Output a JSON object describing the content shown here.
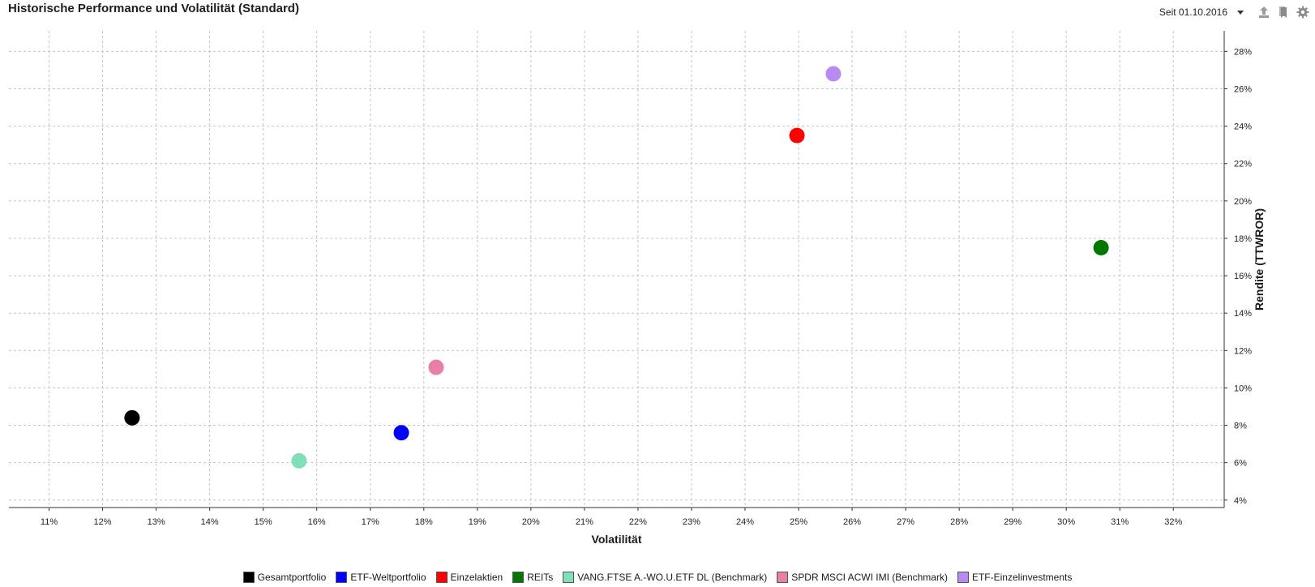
{
  "header": {
    "title": "Historische Performance und Volatilität (Standard)",
    "period_label": "Seit 01.10.2016",
    "icons": [
      "dropdown-arrow-icon",
      "export-icon",
      "bookmark-icon",
      "gear-icon"
    ]
  },
  "chart_data": {
    "type": "scatter",
    "title": "Historische Performance und Volatilität (Standard)",
    "xlabel": "Volatilität",
    "ylabel": "Rendite (TTWROR)",
    "xlim": [
      10.25,
      32.95
    ],
    "ylim": [
      3.6,
      29.1
    ],
    "x_ticks": [
      11,
      12,
      13,
      14,
      15,
      16,
      17,
      18,
      19,
      20,
      21,
      22,
      23,
      24,
      25,
      26,
      27,
      28,
      29,
      30,
      31,
      32
    ],
    "y_ticks": [
      4,
      6,
      8,
      10,
      12,
      14,
      16,
      18,
      20,
      22,
      24,
      26,
      28
    ],
    "tick_suffix": "%",
    "grid": true,
    "y_axis_side": "right",
    "legend_position": "bottom",
    "series": [
      {
        "name": "Gesamtportfolio",
        "color": "#000000",
        "x": 12.55,
        "y": 8.4
      },
      {
        "name": "ETF-Weltportfolio",
        "color": "#0000ff",
        "x": 17.58,
        "y": 7.6
      },
      {
        "name": "Einzelaktien",
        "color": "#ff0000",
        "x": 24.97,
        "y": 23.5
      },
      {
        "name": "REITs",
        "color": "#007700",
        "x": 30.65,
        "y": 17.5
      },
      {
        "name": "VANG.FTSE A.-WO.U.ETF DL (Benchmark)",
        "color": "#7fe0b8",
        "x": 15.67,
        "y": 6.1
      },
      {
        "name": "SPDR MSCI ACWI IMI  (Benchmark)",
        "color": "#e87fa8",
        "x": 18.23,
        "y": 11.1
      },
      {
        "name": "ETF-Einzelinvestments",
        "color": "#b98af0",
        "x": 25.65,
        "y": 26.8
      }
    ]
  }
}
